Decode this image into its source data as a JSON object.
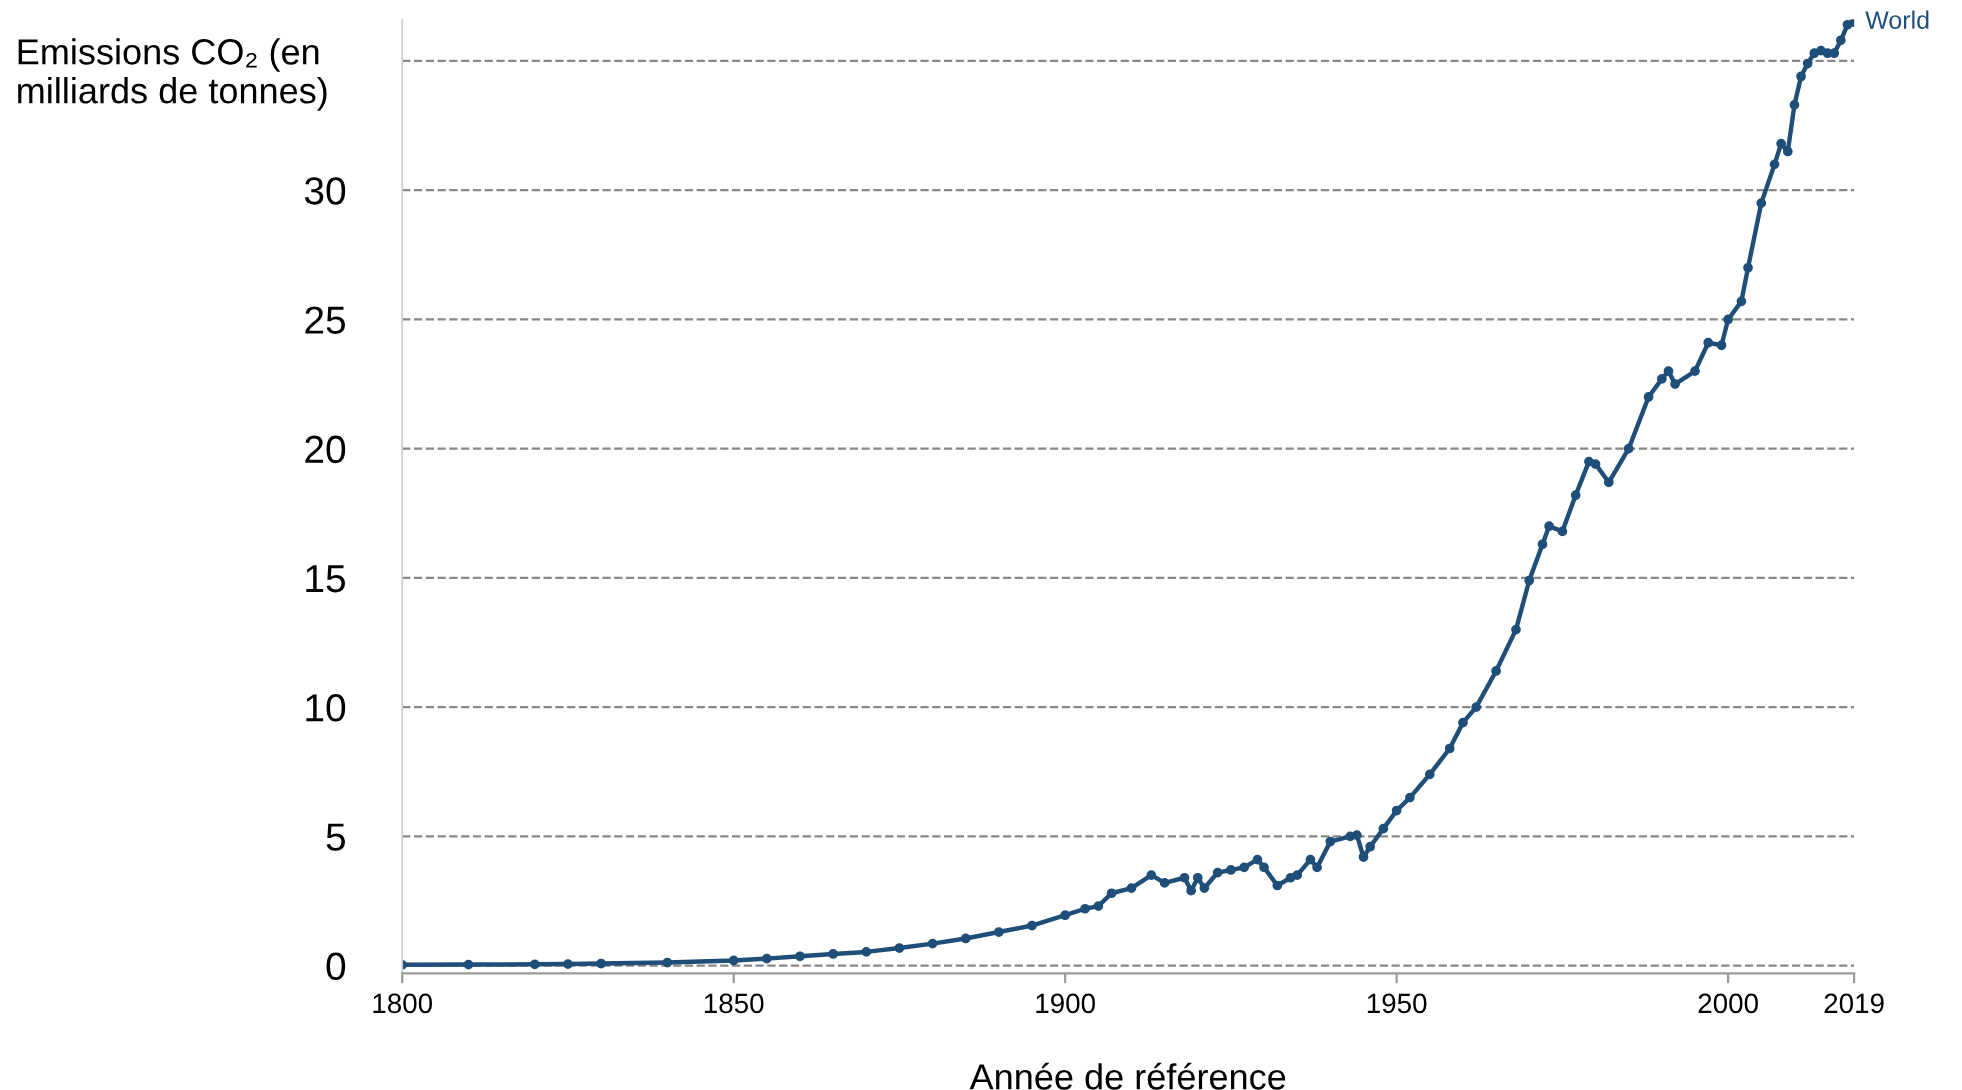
{
  "chart_data": {
    "type": "line",
    "ylabel": "Emissions CO₂ (en\nmilliards de tonnes)",
    "xlabel": "Année de référence",
    "x": [
      1800,
      1810,
      1820,
      1825,
      1830,
      1840,
      1850,
      1855,
      1860,
      1865,
      1870,
      1875,
      1880,
      1885,
      1890,
      1895,
      1900,
      1903,
      1905,
      1907,
      1910,
      1913,
      1915,
      1918,
      1919,
      1920,
      1921,
      1923,
      1925,
      1927,
      1929,
      1930,
      1932,
      1934,
      1935,
      1937,
      1938,
      1940,
      1943,
      1944,
      1945,
      1946,
      1948,
      1950,
      1952,
      1955,
      1958,
      1960,
      1962,
      1965,
      1968,
      1970,
      1972,
      1973,
      1975,
      1977,
      1979,
      1980,
      1982,
      1985,
      1988,
      1990,
      1991,
      1992,
      1995,
      1997,
      1999,
      2000,
      2002,
      2003,
      2005,
      2007,
      2008,
      2009,
      2010,
      2011,
      2012,
      2013,
      2014,
      2015,
      2016,
      2017,
      2018,
      2019
    ],
    "series": [
      {
        "name": "World",
        "color": "#1f4e79",
        "values": [
          0.03,
          0.04,
          0.05,
          0.06,
          0.08,
          0.12,
          0.2,
          0.27,
          0.36,
          0.45,
          0.53,
          0.68,
          0.85,
          1.05,
          1.3,
          1.55,
          1.95,
          2.2,
          2.3,
          2.8,
          3.0,
          3.5,
          3.2,
          3.4,
          2.9,
          3.4,
          3.0,
          3.6,
          3.7,
          3.8,
          4.1,
          3.8,
          3.1,
          3.4,
          3.5,
          4.1,
          3.8,
          4.8,
          5.0,
          5.05,
          4.2,
          4.6,
          5.3,
          6.0,
          6.5,
          7.4,
          8.4,
          9.4,
          10.0,
          11.4,
          13.0,
          14.9,
          16.3,
          17.0,
          16.8,
          18.2,
          19.5,
          19.4,
          18.7,
          20.0,
          22.0,
          22.7,
          23.0,
          22.5,
          23.0,
          24.1,
          24.0,
          25.0,
          25.7,
          27.0,
          29.5,
          31.0,
          31.8,
          31.5,
          33.3,
          34.4,
          34.9,
          35.3,
          35.4,
          35.3,
          35.3,
          35.8,
          36.4,
          36.5
        ]
      }
    ],
    "xlim": [
      1800,
      2019
    ],
    "xticks": [
      1800,
      1850,
      1900,
      1950,
      2000,
      2019
    ],
    "ylim": [
      -0.3,
      36.6
    ],
    "yticks": [
      0,
      5,
      10,
      15,
      20,
      25,
      30,
      {
        "value": 35,
        "label": null
      }
    ],
    "grid": "y",
    "legend": false,
    "marker": "circle",
    "line_style": "solid"
  }
}
